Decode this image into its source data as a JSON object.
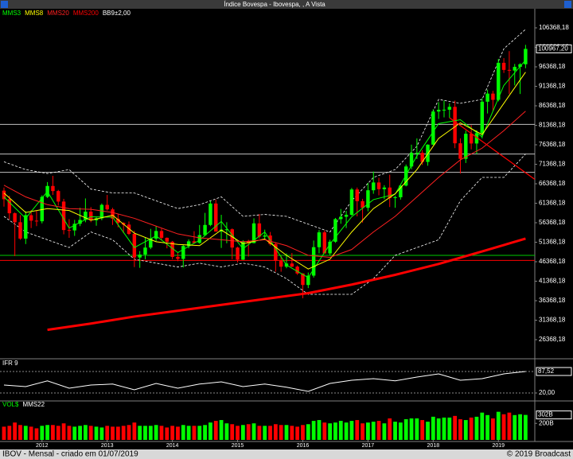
{
  "header": {
    "title": "Índice Bovespa - Ibovespa, , A Vista"
  },
  "footer": {
    "left": "IBOV - Mensal - criado em 01/07/2019",
    "right": "© 2019 Broadcast"
  },
  "chart_data": [
    {
      "type": "candlestick",
      "up_color": "#00ff00",
      "down_color": "#ff0000",
      "xlim": [
        -0.73,
        97.7
      ],
      "xticks": [
        {
          "value": 7,
          "label": "2012"
        },
        {
          "value": 19,
          "label": "2013"
        },
        {
          "value": 31,
          "label": "2014"
        },
        {
          "value": 43,
          "label": "2015"
        },
        {
          "value": 55,
          "label": "2016"
        },
        {
          "value": 67,
          "label": "2017"
        },
        {
          "value": 79,
          "label": "2018"
        },
        {
          "value": 91,
          "label": "2019"
        }
      ],
      "ylim": [
        21674,
        110858
      ],
      "yticks": [
        {
          "value": 26368.18,
          "label": "26368,18"
        },
        {
          "value": 31368.18,
          "label": "31368,18"
        },
        {
          "value": 36368.18,
          "label": "36368,18"
        },
        {
          "value": 41368.18,
          "label": "41368,18"
        },
        {
          "value": 46368.18,
          "label": "46368,18"
        },
        {
          "value": 51368.18,
          "label": "51368,18"
        },
        {
          "value": 56368.18,
          "label": "56368,18"
        },
        {
          "value": 61368.18,
          "label": "61368,18"
        },
        {
          "value": 66368.18,
          "label": "66368,18"
        },
        {
          "value": 71368.18,
          "label": "71368,18"
        },
        {
          "value": 76368.18,
          "label": "76368,18"
        },
        {
          "value": 81368.18,
          "label": "81368,18"
        },
        {
          "value": 86368.18,
          "label": "86368,18"
        },
        {
          "value": 91368.18,
          "label": "91368,18"
        },
        {
          "value": 96368.18,
          "label": "96368,18"
        },
        {
          "value": 101368.18,
          "label": "101368,18"
        },
        {
          "value": 106368.18,
          "label": "106368,18"
        }
      ],
      "last_value": {
        "value": 100967.2,
        "label": "100967,20"
      },
      "candles": [
        [
          64600,
          65400,
          60500,
          62400
        ],
        [
          62400,
          63300,
          57200,
          58800
        ],
        [
          58800,
          59000,
          47800,
          56500
        ],
        [
          56500,
          58300,
          52000,
          52300
        ],
        [
          52300,
          59300,
          50900,
          58300
        ],
        [
          58300,
          59600,
          55000,
          56900
        ],
        [
          56900,
          59500,
          55500,
          56750
        ],
        [
          56750,
          63400,
          56200,
          63000
        ],
        [
          63000,
          66800,
          62700,
          65800
        ],
        [
          65800,
          68400,
          63500,
          64500
        ],
        [
          64500,
          64800,
          60800,
          61800
        ],
        [
          61800,
          62500,
          53400,
          54500
        ],
        [
          54500,
          57300,
          52500,
          54400
        ],
        [
          54400,
          57100,
          53000,
          56100
        ],
        [
          56100,
          60200,
          55500,
          57100
        ],
        [
          57100,
          62600,
          56500,
          59200
        ],
        [
          59200,
          60400,
          56500,
          57000
        ],
        [
          57000,
          57800,
          55600,
          57500
        ],
        [
          57500,
          61300,
          57000,
          60950
        ],
        [
          60950,
          63500,
          59500,
          59800
        ],
        [
          59800,
          60200,
          55800,
          57400
        ],
        [
          57400,
          58600,
          55200,
          56350
        ],
        [
          56350,
          56500,
          53700,
          55900
        ],
        [
          55900,
          56700,
          53200,
          53500
        ],
        [
          53500,
          54300,
          45000,
          47450
        ],
        [
          47450,
          49100,
          44800,
          48200
        ],
        [
          48200,
          52600,
          47000,
          50000
        ],
        [
          50000,
          54800,
          49600,
          52300
        ],
        [
          52300,
          55500,
          51600,
          54250
        ],
        [
          54250,
          54900,
          51800,
          52500
        ],
        [
          52500,
          52600,
          49800,
          51500
        ],
        [
          51500,
          51700,
          47000,
          47600
        ],
        [
          47600,
          48600,
          46500,
          47100
        ],
        [
          47100,
          50700,
          44900,
          50400
        ],
        [
          50400,
          52100,
          49800,
          51600
        ],
        [
          51600,
          54200,
          51000,
          51200
        ],
        [
          51200,
          55800,
          51000,
          53200
        ],
        [
          53200,
          58900,
          52900,
          55800
        ],
        [
          55800,
          61900,
          55500,
          61300
        ],
        [
          61300,
          62300,
          54100,
          54100
        ],
        [
          54100,
          58400,
          49900,
          54600
        ],
        [
          54600,
          56500,
          51100,
          54700
        ],
        [
          54700,
          54900,
          47000,
          50000
        ],
        [
          50000,
          50200,
          46200,
          46900
        ],
        [
          46900,
          51900,
          46800,
          51600
        ],
        [
          51600,
          52000,
          47700,
          51150
        ],
        [
          51150,
          57500,
          51100,
          56200
        ],
        [
          56200,
          58600,
          52300,
          52800
        ],
        [
          52800,
          54600,
          52000,
          53100
        ],
        [
          53100,
          54000,
          50500,
          50900
        ],
        [
          50900,
          51300,
          43800,
          46600
        ],
        [
          46600,
          47900,
          43800,
          45100
        ],
        [
          45100,
          48500,
          44700,
          45900
        ],
        [
          45900,
          48600,
          45000,
          45100
        ],
        [
          45100,
          45400,
          43000,
          43350
        ],
        [
          43350,
          43400,
          37000,
          40400
        ],
        [
          40400,
          43600,
          39600,
          42800
        ],
        [
          42800,
          51800,
          42300,
          50100
        ],
        [
          50100,
          54500,
          48500,
          53900
        ],
        [
          53900,
          54400,
          48500,
          48500
        ],
        [
          48500,
          52000,
          48000,
          51500
        ],
        [
          51500,
          57600,
          51200,
          57300
        ],
        [
          57300,
          59900,
          56100,
          57900
        ],
        [
          57900,
          59400,
          55000,
          58400
        ],
        [
          58400,
          65300,
          58200,
          64900
        ],
        [
          64900,
          65400,
          58000,
          61900
        ],
        [
          61900,
          62500,
          56400,
          60200
        ],
        [
          60200,
          66600,
          59300,
          64700
        ],
        [
          64700,
          69500,
          63800,
          66700
        ],
        [
          66700,
          67900,
          63400,
          64980
        ],
        [
          64980,
          66000,
          62400,
          65400
        ],
        [
          65400,
          68700,
          60400,
          62700
        ],
        [
          62700,
          63300,
          60200,
          62900
        ],
        [
          62900,
          66000,
          62300,
          65900
        ],
        [
          65900,
          71300,
          65700,
          70800
        ],
        [
          70800,
          76400,
          70100,
          74300
        ],
        [
          74300,
          78000,
          72700,
          74300
        ],
        [
          74300,
          75000,
          71200,
          71970
        ],
        [
          71970,
          76500,
          71000,
          76400
        ],
        [
          76400,
          85500,
          76300,
          84900
        ],
        [
          84900,
          87300,
          83000,
          85350
        ],
        [
          85350,
          87700,
          83400,
          85370
        ],
        [
          85370,
          87000,
          83300,
          86100
        ],
        [
          86100,
          87700,
          75500,
          76750
        ],
        [
          76750,
          78000,
          69000,
          72760
        ],
        [
          72760,
          80000,
          71700,
          79200
        ],
        [
          79200,
          81400,
          75200,
          76700
        ],
        [
          76700,
          80100,
          74000,
          79340
        ],
        [
          79340,
          88300,
          78000,
          87420
        ],
        [
          87420,
          90500,
          84400,
          89500
        ],
        [
          89500,
          90200,
          84900,
          87900
        ],
        [
          87900,
          98400,
          87500,
          97400
        ],
        [
          97400,
          98600,
          94800,
          95580
        ],
        [
          95580,
          100400,
          89400,
          95410
        ],
        [
          95410,
          97100,
          91600,
          96350
        ],
        [
          96350,
          97300,
          89400,
          97030
        ],
        [
          97030,
          102000,
          96000,
          100967.2
        ]
      ],
      "lines": [
        {
          "name": "MMS3",
          "color": "#00ff00",
          "width": 1,
          "x": [
            0,
            4,
            8,
            12,
            16,
            20,
            24,
            28,
            32,
            36,
            40,
            44,
            48,
            52,
            56,
            60,
            64,
            68,
            72,
            76,
            80,
            84,
            88,
            92,
            96
          ],
          "values": [
            63000,
            57500,
            64400,
            55000,
            57900,
            57800,
            50000,
            53000,
            48700,
            51900,
            56700,
            49700,
            54000,
            45500,
            42300,
            50900,
            57900,
            62300,
            63700,
            73500,
            81800,
            82800,
            78400,
            91600,
            98100
          ]
        },
        {
          "name": "MMS8",
          "color": "#ffff00",
          "width": 1,
          "x": [
            0,
            4,
            8,
            12,
            16,
            20,
            24,
            28,
            32,
            36,
            40,
            44,
            48,
            52,
            56,
            60,
            64,
            68,
            72,
            76,
            80,
            84,
            88,
            92,
            96
          ],
          "values": [
            64000,
            59000,
            60000,
            59500,
            57000,
            58300,
            53700,
            51500,
            50800,
            50500,
            54500,
            51000,
            52200,
            48000,
            44500,
            47000,
            54000,
            60000,
            63800,
            70000,
            78000,
            82000,
            79000,
            87000,
            95000
          ]
        },
        {
          "name": "MMS20",
          "color": "#ff2020",
          "width": 1,
          "x": [
            0,
            4,
            8,
            12,
            16,
            20,
            24,
            28,
            32,
            36,
            40,
            44,
            48,
            52,
            56,
            60,
            64,
            68,
            72,
            76,
            80,
            84,
            88,
            92,
            96
          ],
          "values": [
            66000,
            63000,
            61000,
            60000,
            59800,
            59000,
            57500,
            55500,
            53500,
            52500,
            52000,
            51500,
            52000,
            50500,
            48000,
            47500,
            49500,
            54000,
            58000,
            63000,
            68000,
            72500,
            75500,
            80000,
            85000
          ]
        },
        {
          "name": "MMS200",
          "color": "#ff0000",
          "width": 3,
          "x": [
            8,
            16,
            24,
            32,
            40,
            48,
            56,
            64,
            72,
            80,
            88,
            96
          ],
          "values": [
            28900,
            30500,
            32300,
            33800,
            35300,
            36800,
            38300,
            40500,
            43000,
            45800,
            49000,
            52300
          ]
        }
      ],
      "bands": {
        "name": "BB9±2,00",
        "color": "#ffffff",
        "x": [
          0,
          4,
          8,
          12,
          16,
          20,
          24,
          28,
          32,
          36,
          40,
          44,
          48,
          52,
          56,
          60,
          64,
          68,
          72,
          76,
          80,
          84,
          88,
          92,
          96
        ],
        "upper": [
          72000,
          70000,
          69000,
          70000,
          65000,
          64000,
          64000,
          62000,
          60000,
          61000,
          63000,
          58000,
          58500,
          58000,
          56000,
          54000,
          62000,
          68000,
          70000,
          76000,
          88000,
          87000,
          88000,
          101000,
          106000
        ],
        "lower": [
          58000,
          54000,
          52000,
          50000,
          54000,
          52000,
          47000,
          46000,
          45000,
          46000,
          45000,
          46000,
          45000,
          42000,
          38000,
          38000,
          38000,
          42000,
          48000,
          50000,
          52000,
          62000,
          68000,
          68000,
          74000
        ]
      },
      "hlines": [
        {
          "value": 81600,
          "color": "#c0c0c0"
        },
        {
          "value": 74000,
          "color": "#c0c0c0"
        },
        {
          "value": 69300,
          "color": "#c0c0c0"
        },
        {
          "value": 48000,
          "color": "#00cc00"
        },
        {
          "value": 46700,
          "color": "#ff0000"
        }
      ],
      "trendlines": [
        {
          "color": "#ff0000",
          "x": [
            82,
            97.7
          ],
          "values": [
            83300,
            67500
          ]
        }
      ]
    },
    {
      "type": "line",
      "title": "IFR 9",
      "color": "#ffffff",
      "xlim": [
        -0.73,
        97.7
      ],
      "ylim": [
        0,
        120
      ],
      "yticks": [
        {
          "value": 20,
          "label": "20,00"
        }
      ],
      "last_value": {
        "value": 87.52,
        "label": "87,52"
      },
      "x": [
        0,
        4,
        8,
        12,
        16,
        20,
        24,
        28,
        32,
        36,
        40,
        44,
        48,
        52,
        56,
        60,
        64,
        68,
        72,
        76,
        80,
        84,
        88,
        92,
        96
      ],
      "values": [
        45,
        40,
        58,
        35,
        45,
        48,
        30,
        50,
        35,
        48,
        55,
        40,
        48,
        38,
        25,
        50,
        60,
        65,
        58,
        70,
        80,
        60,
        65,
        80,
        87.52
      ]
    },
    {
      "type": "bar",
      "title": "VOL$",
      "subtitle": "MMS22",
      "xlim": [
        -0.73,
        97.7
      ],
      "ylim": [
        0,
        452
      ],
      "yticks": [
        {
          "value": 200,
          "label": "200B"
        }
      ],
      "last_value": {
        "value": 302,
        "label": "302B"
      },
      "values": [
        160,
        170,
        210,
        180,
        170,
        160,
        140,
        170,
        180,
        180,
        170,
        200,
        170,
        160,
        170,
        180,
        170,
        160,
        150,
        170,
        160,
        160,
        170,
        180,
        210,
        170,
        170,
        170,
        180,
        170,
        150,
        170,
        160,
        180,
        170,
        170,
        170,
        180,
        210,
        230,
        240,
        200,
        190,
        170,
        180,
        190,
        200,
        170,
        170,
        170,
        190,
        180,
        180,
        170,
        160,
        180,
        190,
        230,
        240,
        210,
        200,
        210,
        230,
        210,
        230,
        240,
        200,
        210,
        220,
        230,
        200,
        260,
        220,
        210,
        250,
        260,
        260,
        240,
        220,
        280,
        260,
        270,
        270,
        290,
        250,
        240,
        270,
        280,
        330,
        300,
        260,
        340,
        310,
        330,
        300,
        310,
        302
      ]
    }
  ]
}
